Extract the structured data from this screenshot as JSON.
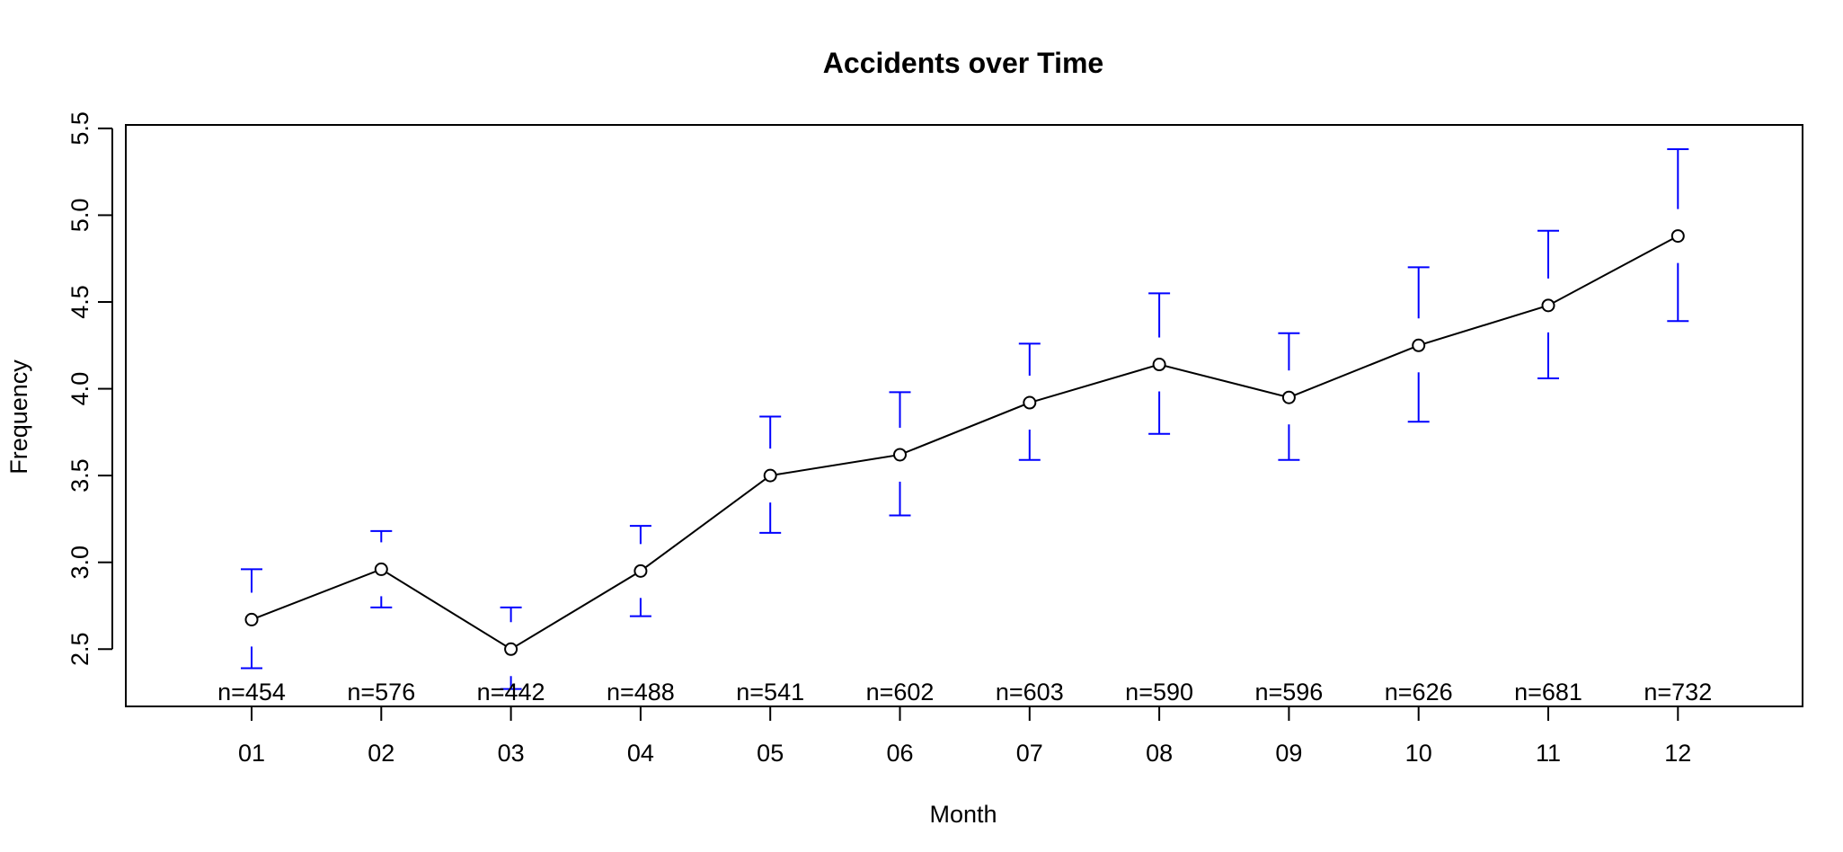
{
  "chart_data": {
    "type": "line",
    "title": "Accidents over Time",
    "xlabel": "Month",
    "ylabel": "Frequency",
    "categories": [
      "01",
      "02",
      "03",
      "04",
      "05",
      "06",
      "07",
      "08",
      "09",
      "10",
      "11",
      "12"
    ],
    "values": [
      2.67,
      2.96,
      2.5,
      2.95,
      3.5,
      3.62,
      3.92,
      4.14,
      3.95,
      4.25,
      4.48,
      4.88
    ],
    "upper": [
      2.96,
      3.18,
      2.74,
      3.21,
      3.84,
      3.98,
      4.26,
      4.55,
      4.32,
      4.7,
      4.91,
      5.38
    ],
    "lower": [
      2.39,
      2.74,
      2.27,
      2.69,
      3.17,
      3.27,
      3.59,
      3.74,
      3.59,
      3.81,
      4.06,
      4.39
    ],
    "n_labels": [
      "n=454",
      "n=576",
      "n=442",
      "n=488",
      "n=541",
      "n=602",
      "n=603",
      "n=590",
      "n=596",
      "n=626",
      "n=681",
      "n=732"
    ],
    "yticks": [
      "2.5",
      "3.0",
      "3.5",
      "4.0",
      "4.5",
      "5.0",
      "5.5"
    ],
    "ylim": [
      2.17,
      5.52
    ],
    "grid": false,
    "error_bar_color": "#0000ff",
    "line_color": "#000000"
  }
}
